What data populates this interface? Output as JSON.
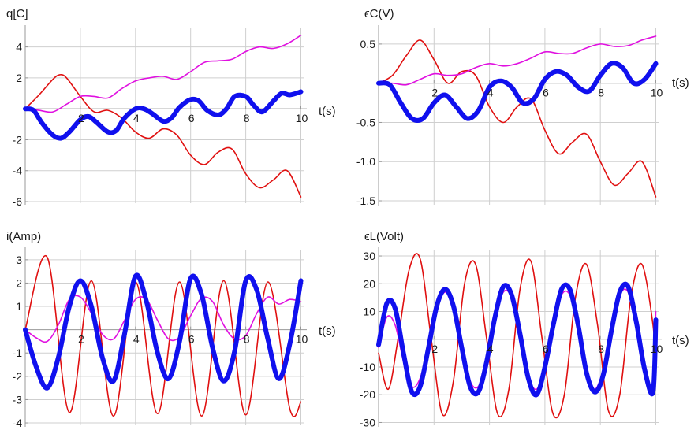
{
  "chart_data": [
    {
      "type": "line",
      "ylabel": "q[C]",
      "xlabel": "t(s)",
      "x_ticks": [
        2,
        4,
        6,
        8,
        10
      ],
      "y_ticks": [
        -6,
        -4,
        -2,
        2,
        4
      ],
      "xlim": [
        0,
        10.1
      ],
      "ylim": [
        -6.1,
        5.2
      ],
      "grid": true,
      "series": [
        {
          "color": "#e01010",
          "width": "thin",
          "x": [
            0,
            0.5,
            1,
            1.25,
            1.5,
            2,
            2.5,
            3,
            3.5,
            4,
            4.5,
            5,
            5.5,
            6,
            6.5,
            7,
            7.5,
            8,
            8.5,
            9,
            9.5,
            10
          ],
          "y": [
            0,
            0.9,
            1.9,
            2.2,
            2.0,
            0.8,
            -0.2,
            -0.1,
            -0.6,
            -1.5,
            -1.9,
            -1.3,
            -1.7,
            -3.0,
            -3.6,
            -2.8,
            -2.6,
            -4.2,
            -5.1,
            -4.6,
            -4.0,
            -5.7
          ]
        },
        {
          "color": "#e010e0",
          "width": "thin",
          "x": [
            0,
            0.5,
            1,
            1.5,
            2,
            2.5,
            3,
            3.5,
            4,
            4.5,
            5,
            5.5,
            6,
            6.5,
            7,
            7.5,
            8,
            8.5,
            9,
            9.5,
            10
          ],
          "y": [
            0,
            -0.1,
            -0.2,
            0.3,
            0.8,
            0.8,
            0.7,
            1.3,
            1.8,
            2.0,
            2.1,
            1.9,
            2.4,
            3.0,
            3.1,
            3.2,
            3.7,
            4.0,
            3.9,
            4.2,
            4.75
          ]
        },
        {
          "color": "#1010ee",
          "width": "thick",
          "x": [
            0,
            0.3,
            0.6,
            1,
            1.3,
            1.6,
            2,
            2.3,
            2.6,
            3,
            3.3,
            3.6,
            4,
            4.3,
            4.6,
            5,
            5.3,
            5.6,
            6,
            6.3,
            6.6,
            7,
            7.3,
            7.6,
            8,
            8.3,
            8.6,
            9,
            9.3,
            9.6,
            10
          ],
          "y": [
            0,
            -0.1,
            -0.9,
            -1.7,
            -1.9,
            -1.5,
            -0.7,
            -0.5,
            -0.9,
            -1.5,
            -1.4,
            -0.6,
            0,
            0,
            -0.3,
            -0.8,
            -0.6,
            0.1,
            0.6,
            0.5,
            -0.1,
            -0.4,
            0,
            0.8,
            0.8,
            0.2,
            -0.2,
            0.5,
            1.0,
            0.9,
            1.1
          ]
        }
      ]
    },
    {
      "type": "line",
      "ylabel": "ϵC(V)",
      "xlabel": "t(s)",
      "x_ticks": [
        2,
        4,
        6,
        8,
        10
      ],
      "y_ticks": [
        -1.5,
        -1.0,
        -0.5,
        0.5
      ],
      "y_tick_labels": [
        "-1.5",
        "-1.0",
        "-0.5",
        "0.5"
      ],
      "xlim": [
        0,
        10.1
      ],
      "ylim": [
        -1.55,
        0.7
      ],
      "grid": true,
      "series": [
        {
          "color": "#e01010",
          "width": "thin",
          "x": [
            0,
            0.5,
            1,
            1.5,
            2,
            2.5,
            3,
            3.5,
            4,
            4.5,
            5,
            5.5,
            6,
            6.5,
            7,
            7.5,
            8,
            8.5,
            9,
            9.5,
            10
          ],
          "y": [
            0,
            0.1,
            0.35,
            0.55,
            0.3,
            0,
            0.15,
            0.1,
            -0.3,
            -0.5,
            -0.3,
            -0.2,
            -0.6,
            -0.9,
            -0.75,
            -0.65,
            -1.0,
            -1.3,
            -1.15,
            -1.0,
            -1.45
          ]
        },
        {
          "color": "#e010e0",
          "width": "thin",
          "x": [
            0,
            0.5,
            1,
            1.5,
            2,
            2.5,
            3,
            3.5,
            4,
            4.5,
            5,
            5.5,
            6,
            6.5,
            7,
            7.5,
            8,
            8.5,
            9,
            9.5,
            10
          ],
          "y": [
            0,
            0,
            -0.02,
            0.05,
            0.12,
            0.1,
            0.12,
            0.2,
            0.25,
            0.22,
            0.25,
            0.32,
            0.4,
            0.38,
            0.38,
            0.45,
            0.5,
            0.47,
            0.48,
            0.55,
            0.6
          ]
        },
        {
          "color": "#1010ee",
          "width": "thick",
          "x": [
            0,
            0.4,
            0.8,
            1.2,
            1.6,
            2,
            2.4,
            2.8,
            3.2,
            3.6,
            4,
            4.4,
            4.8,
            5.2,
            5.6,
            6,
            6.4,
            6.8,
            7.2,
            7.6,
            8,
            8.4,
            8.8,
            9.2,
            9.6,
            10
          ],
          "y": [
            0,
            -0.02,
            -0.25,
            -0.45,
            -0.45,
            -0.25,
            -0.15,
            -0.3,
            -0.45,
            -0.35,
            -0.05,
            0.03,
            -0.05,
            -0.25,
            -0.2,
            0.05,
            0.15,
            0.1,
            -0.05,
            -0.1,
            0.1,
            0.25,
            0.2,
            0,
            0.05,
            0.25
          ]
        }
      ]
    },
    {
      "type": "line",
      "ylabel": "i(Amp)",
      "xlabel": "t(s)",
      "x_ticks": [
        2,
        4,
        6,
        8,
        10
      ],
      "y_ticks": [
        -4,
        -3,
        -2,
        -1,
        1,
        2,
        3
      ],
      "xlim": [
        0,
        10.1
      ],
      "ylim": [
        -4.1,
        3.4
      ],
      "grid": true,
      "series": [
        {
          "color": "#e01010",
          "width": "thin",
          "x": [
            0,
            0.8,
            1.6,
            2.4,
            3.2,
            4.0,
            4.8,
            5.6,
            6.4,
            7.2,
            8.0,
            8.8,
            9.6,
            10
          ],
          "y": [
            0,
            3.1,
            -3.55,
            2.1,
            -3.7,
            2.05,
            -3.6,
            2.05,
            -3.7,
            2.1,
            -3.65,
            2.05,
            -3.4,
            -3.1
          ],
          "smooth": "sine"
        },
        {
          "color": "#e010e0",
          "width": "thin",
          "x": [
            0,
            0.4,
            0.8,
            1.2,
            1.6,
            2.0,
            2.4,
            2.8,
            3.2,
            3.6,
            4.0,
            4.4,
            4.8,
            5.2,
            5.6,
            6.0,
            6.4,
            6.8,
            7.2,
            7.6,
            8.0,
            8.4,
            8.8,
            9.2,
            9.6,
            10
          ],
          "y": [
            0,
            -0.35,
            -0.5,
            0.2,
            1.3,
            1.4,
            0.7,
            -0.2,
            -0.4,
            0.4,
            1.3,
            1.3,
            0.4,
            -0.4,
            -0.3,
            0.6,
            1.35,
            1.2,
            0.2,
            -0.4,
            -0.25,
            0.7,
            1.4,
            1.1,
            1.3,
            1.2
          ]
        },
        {
          "color": "#1010ee",
          "width": "thick",
          "x": [
            0,
            0.4,
            0.8,
            1.2,
            1.6,
            2.0,
            2.4,
            2.8,
            3.2,
            3.6,
            4.0,
            4.4,
            4.8,
            5.2,
            5.6,
            6.0,
            6.4,
            6.8,
            7.2,
            7.6,
            8.0,
            8.4,
            8.8,
            9.2,
            9.6,
            10
          ],
          "y": [
            0,
            -1.6,
            -2.5,
            -1.2,
            1.0,
            2.1,
            1.0,
            -1.2,
            -2.2,
            -0.2,
            2.3,
            1.2,
            -1.0,
            -2.1,
            -0.5,
            2.2,
            1.5,
            -0.8,
            -2.2,
            -0.9,
            2.1,
            1.7,
            -0.4,
            -2.1,
            -0.6,
            2.1
          ]
        }
      ]
    },
    {
      "type": "line",
      "ylabel": "ϵL(Volt)",
      "xlabel": "t(s)",
      "x_ticks": [
        2,
        4,
        6,
        8,
        10
      ],
      "y_ticks": [
        -30,
        -20,
        -10,
        10,
        20,
        30
      ],
      "xlim": [
        0,
        10.1
      ],
      "ylim": [
        -31,
        32
      ],
      "grid": true,
      "series": [
        {
          "color": "#e01010",
          "width": "thin",
          "x": [
            0,
            0.35,
            0.7,
            1.1,
            1.5,
            1.9,
            2.3,
            2.7,
            3.1,
            3.5,
            3.9,
            4.3,
            4.7,
            5.1,
            5.5,
            5.9,
            6.3,
            6.7,
            7.1,
            7.5,
            7.9,
            8.3,
            8.7,
            9.1,
            9.5,
            9.9,
            10
          ],
          "y": [
            -5,
            -18,
            0,
            25,
            29,
            0,
            -27,
            -15,
            20,
            27,
            0,
            -27,
            -18,
            18,
            28,
            0,
            -27,
            -20,
            15,
            27,
            5,
            -26,
            -20,
            15,
            27,
            5,
            -12
          ],
          "smooth": "catmull"
        },
        {
          "color": "#e010e0",
          "width": "thin",
          "x": [
            0,
            0.3,
            0.6,
            0.9,
            1.2,
            1.5,
            1.8,
            2.1,
            2.4,
            2.7,
            3.0,
            3.3,
            3.6,
            3.9,
            4.2,
            4.5,
            4.8,
            5.1,
            5.4,
            5.7,
            6.0,
            6.3,
            6.6,
            6.9,
            7.2,
            7.5,
            7.8,
            8.1,
            8.4,
            8.7,
            9.0,
            9.3,
            9.6,
            9.9,
            10
          ],
          "y": [
            -3,
            8,
            5,
            -8,
            -17,
            -14,
            -2,
            11,
            17,
            12,
            -2,
            -15,
            -17,
            -8,
            7,
            17,
            15,
            2,
            -13,
            -18,
            -10,
            5,
            16,
            16,
            5,
            -12,
            -18,
            -11,
            4,
            16,
            17,
            5,
            -11,
            -17,
            10
          ]
        },
        {
          "color": "#1010ee",
          "width": "thick",
          "x": [
            0,
            0.3,
            0.6,
            0.9,
            1.2,
            1.5,
            1.8,
            2.1,
            2.4,
            2.7,
            3.0,
            3.3,
            3.6,
            3.9,
            4.2,
            4.5,
            4.8,
            5.1,
            5.4,
            5.7,
            6.0,
            6.3,
            6.6,
            6.9,
            7.2,
            7.5,
            7.8,
            8.1,
            8.4,
            8.7,
            9.0,
            9.3,
            9.6,
            9.9,
            10
          ],
          "y": [
            -2,
            13,
            11,
            -5,
            -19,
            -17,
            -3,
            12,
            18,
            12,
            -3,
            -17,
            -19,
            -8,
            8,
            19,
            16,
            2,
            -14,
            -20,
            -10,
            5,
            18,
            18,
            5,
            -12,
            -19,
            -13,
            3,
            17,
            19,
            6,
            -11,
            -19,
            7
          ]
        }
      ]
    }
  ]
}
